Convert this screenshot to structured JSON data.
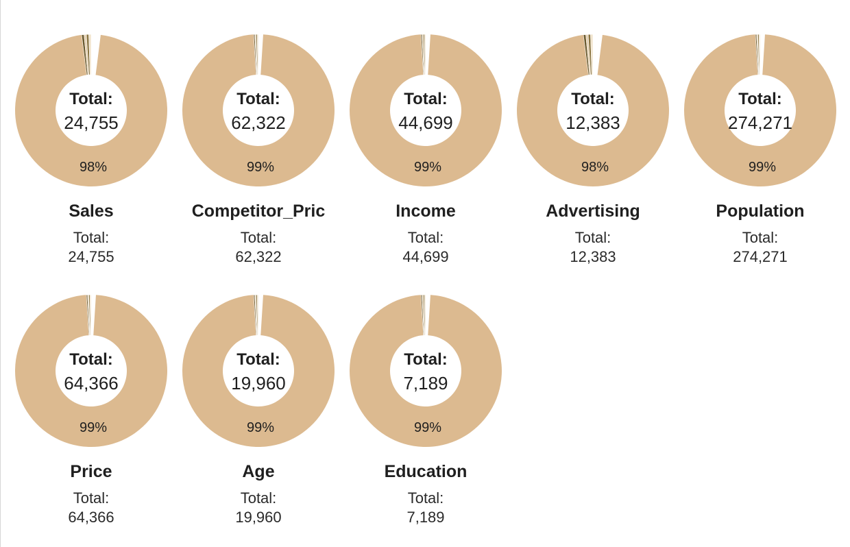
{
  "chart_data": [
    {
      "type": "pie",
      "title": "Sales",
      "total_label": "Total:",
      "total_value": "24,755",
      "major_percent_label": "98%",
      "major_share": 0.98,
      "color": "#dcba90"
    },
    {
      "type": "pie",
      "title": "Competitor_Pric",
      "total_label": "Total:",
      "total_value": "62,322",
      "major_percent_label": "99%",
      "major_share": 0.99,
      "color": "#dcba90"
    },
    {
      "type": "pie",
      "title": "Income",
      "total_label": "Total:",
      "total_value": "44,699",
      "major_percent_label": "99%",
      "major_share": 0.99,
      "color": "#dcba90"
    },
    {
      "type": "pie",
      "title": "Advertising",
      "total_label": "Total:",
      "total_value": "12,383",
      "major_percent_label": "98%",
      "major_share": 0.98,
      "color": "#dcba90"
    },
    {
      "type": "pie",
      "title": "Population",
      "total_label": "Total:",
      "total_value": "274,271",
      "major_percent_label": "99%",
      "major_share": 0.99,
      "color": "#dcba90"
    },
    {
      "type": "pie",
      "title": "Price",
      "total_label": "Total:",
      "total_value": "64,366",
      "major_percent_label": "99%",
      "major_share": 0.99,
      "color": "#dcba90"
    },
    {
      "type": "pie",
      "title": "Age",
      "total_label": "Total:",
      "total_value": "19,960",
      "major_percent_label": "99%",
      "major_share": 0.99,
      "color": "#dcba90"
    },
    {
      "type": "pie",
      "title": "Education",
      "total_label": "Total:",
      "total_value": "7,189",
      "major_percent_label": "99%",
      "major_share": 0.99,
      "color": "#dcba90"
    }
  ]
}
